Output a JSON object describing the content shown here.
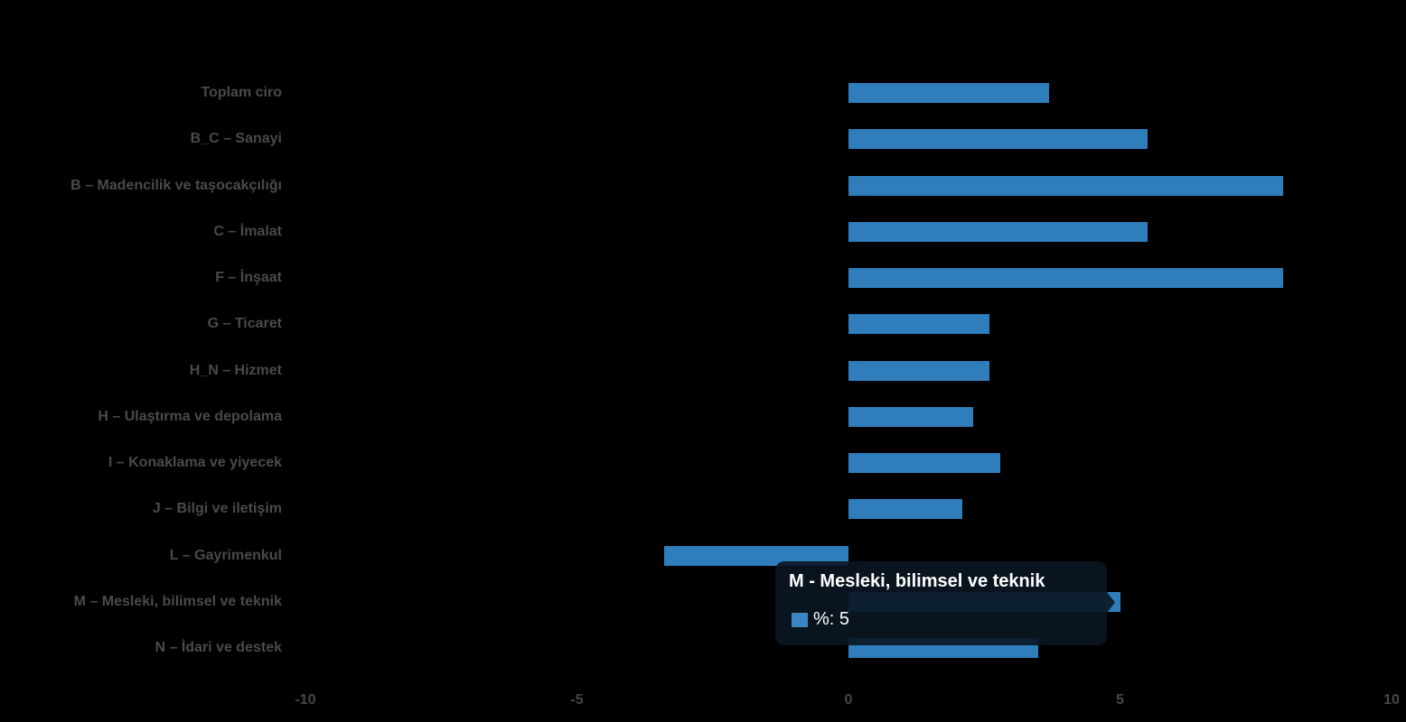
{
  "page": {
    "background": "#000000"
  },
  "chart_data": {
    "type": "bar",
    "orientation": "horizontal",
    "title": "",
    "categories": [
      "Toplam ciro",
      "B_C – Sanayi",
      "B – Madencilik ve taşocakçılığı",
      "C – İmalat",
      "F – İnşaat",
      "G – Ticaret",
      "H_N – Hizmet",
      "H – Ulaştırma ve depolama",
      "I – Konaklama ve yiyecek",
      "J – Bilgi ve iletişim",
      "L – Gayrimenkul",
      "M – Mesleki, bilimsel ve teknik",
      "N – İdari ve destek"
    ],
    "series": [
      {
        "name": "%",
        "values": [
          3.7,
          5.5,
          8,
          5.5,
          8,
          2.6,
          2.6,
          2.3,
          2.8,
          2.1,
          -3.4,
          5,
          3.5
        ]
      }
    ],
    "xlim": [
      -10,
      10
    ],
    "x_ticks": [
      "-10",
      "-5",
      "0",
      "5",
      "10"
    ],
    "x_tick_values": [
      -10,
      -5,
      0,
      5,
      10
    ],
    "grid": false,
    "legend_position": "none",
    "bar_color": "#2f7dba",
    "label_color": "#4a4a4a",
    "tick_color": "#474747",
    "highlighted_category": "M – Mesleki, bilimsel ve teknik"
  },
  "tooltip": {
    "title": "M - Mesleki, bilimsel ve teknik",
    "series_label": "%",
    "value": "5",
    "text": "%: 5",
    "swatch_color": "#3a85c2",
    "text_color": "#ffffff"
  }
}
